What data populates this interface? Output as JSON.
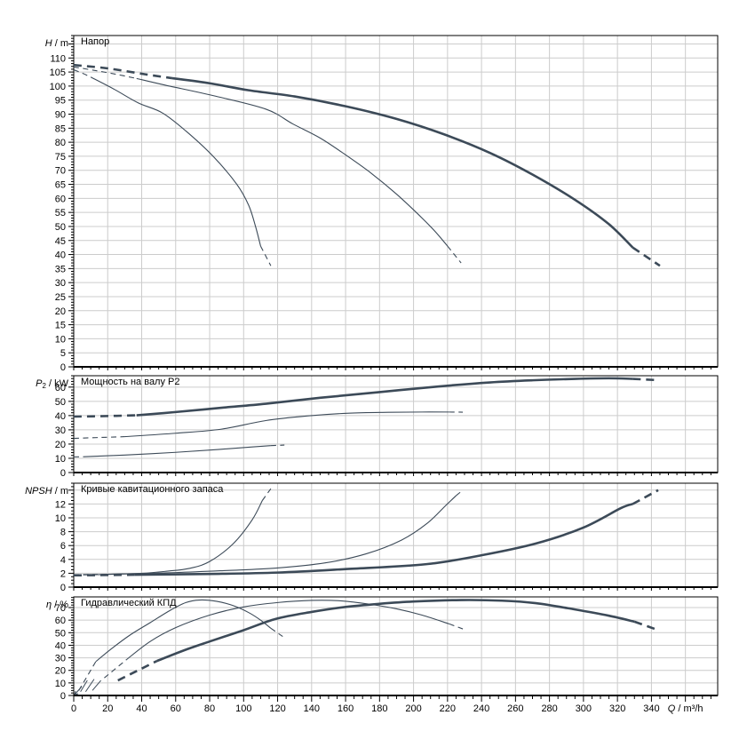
{
  "page": {
    "background": "#ffffff",
    "curve_color": "#3c4a58",
    "grid_color": "#cccccc",
    "frame_color": "#000000"
  },
  "chart_data": {
    "type": "line",
    "x_axis": {
      "quantity": "Q",
      "unit": "m³/h",
      "label": "Q / m³/h",
      "min": 0,
      "max": 379,
      "major_step": 20,
      "minor_step": 5,
      "last_label": 340,
      "tick_labels": [
        0,
        20,
        40,
        60,
        80,
        100,
        120,
        140,
        160,
        180,
        200,
        220,
        240,
        260,
        280,
        300,
        320,
        340
      ]
    },
    "panels": [
      {
        "id": "head",
        "title": "Напор",
        "ylabel": {
          "quantity": "H",
          "sub": "",
          "unit": "m",
          "text": "H / m"
        },
        "ymax": 118,
        "major_step": 5,
        "minor_step": 1,
        "label_max": 110,
        "series": [
          {
            "name": "speed-1",
            "width": "thin",
            "head": [
              [
                0,
                105.8
              ],
              [
                5,
                104.6
              ],
              [
                10,
                103.2
              ]
            ],
            "body": [
              [
                10,
                103.2
              ],
              [
                24,
                98.8
              ],
              [
                38,
                94
              ],
              [
                52,
                90.5
              ],
              [
                66,
                84
              ],
              [
                82,
                75
              ],
              [
                96,
                65
              ],
              [
                103,
                57.5
              ],
              [
                107,
                50
              ],
              [
                110,
                43
              ]
            ],
            "tail": [
              [
                110,
                43
              ],
              [
                116,
                36
              ]
            ]
          },
          {
            "name": "speed-2",
            "width": "thin",
            "head": [
              [
                0,
                106.8
              ],
              [
                12,
                105.6
              ],
              [
                25,
                104.2
              ],
              [
                37,
                102.7
              ]
            ],
            "body": [
              [
                37,
                102.7
              ],
              [
                54,
                100.3
              ],
              [
                82,
                96.6
              ],
              [
                113,
                91.8
              ],
              [
                129,
                86.5
              ],
              [
                145,
                81.5
              ],
              [
                160,
                75.5
              ],
              [
                175,
                69
              ],
              [
                190,
                61.5
              ],
              [
                205,
                53
              ],
              [
                213,
                48
              ],
              [
                220,
                43
              ]
            ],
            "tail": [
              [
                220,
                43
              ],
              [
                228,
                37
              ]
            ]
          },
          {
            "name": "speed-3",
            "width": "thick",
            "head": [
              [
                0,
                107.5
              ],
              [
                20,
                106.3
              ],
              [
                42,
                104.2
              ],
              [
                58,
                102.8
              ]
            ],
            "body": [
              [
                58,
                102.8
              ],
              [
                80,
                101
              ],
              [
                103,
                98.5
              ],
              [
                130,
                96.3
              ],
              [
                160,
                92.8
              ],
              [
                190,
                88.3
              ],
              [
                218,
                82.8
              ],
              [
                245,
                76.2
              ],
              [
                270,
                68.5
              ],
              [
                295,
                59.5
              ],
              [
                315,
                50.8
              ],
              [
                329,
                42.5
              ]
            ],
            "tail": [
              [
                329,
                42.5
              ],
              [
                345,
                36
              ]
            ]
          }
        ]
      },
      {
        "id": "power",
        "title": "Мощность на валу P2",
        "ylabel": {
          "quantity": "P",
          "sub": "2",
          "unit": "kW",
          "text": "P2 / kW"
        },
        "ymax": 68,
        "major_step": 10,
        "minor_step": 2,
        "label_max": 60,
        "series": [
          {
            "name": "speed-1",
            "width": "thin",
            "head": [
              [
                0,
                11
              ],
              [
                6,
                11.1
              ]
            ],
            "body": [
              [
                6,
                11.1
              ],
              [
                30,
                12.3
              ],
              [
                60,
                14.2
              ],
              [
                85,
                16.2
              ],
              [
                105,
                18
              ],
              [
                116,
                18.9
              ]
            ],
            "tail": [
              [
                116,
                18.9
              ],
              [
                124,
                19.3
              ]
            ]
          },
          {
            "name": "speed-2",
            "width": "thin",
            "head": [
              [
                0,
                24
              ],
              [
                15,
                24.6
              ],
              [
                30,
                25.2
              ]
            ],
            "body": [
              [
                30,
                25.2
              ],
              [
                60,
                27.6
              ],
              [
                87,
                30.5
              ],
              [
                113,
                36.5
              ],
              [
                138,
                39.8
              ],
              [
                162,
                41.7
              ],
              [
                185,
                42.3
              ],
              [
                205,
                42.5
              ],
              [
                221,
                42.5
              ]
            ],
            "tail": [
              [
                221,
                42.5
              ],
              [
                229,
                42.4
              ]
            ]
          },
          {
            "name": "speed-3",
            "width": "thick",
            "head": [
              [
                0,
                39.3
              ],
              [
                20,
                39.7
              ],
              [
                37,
                40.2
              ]
            ],
            "body": [
              [
                37,
                40.2
              ],
              [
                60,
                42.5
              ],
              [
                87,
                45.5
              ],
              [
                113,
                48.3
              ],
              [
                145,
                52.5
              ],
              [
                180,
                56.5
              ],
              [
                215,
                60.5
              ],
              [
                245,
                63.3
              ],
              [
                270,
                64.8
              ],
              [
                295,
                65.8
              ],
              [
                315,
                66.2
              ],
              [
                329,
                65.8
              ]
            ],
            "tail": [
              [
                329,
                65.8
              ],
              [
                342,
                65
              ]
            ]
          }
        ]
      },
      {
        "id": "npsh",
        "title": "Кривые кавитационного запаса",
        "ylabel": {
          "quantity": "NPSH",
          "sub": "",
          "unit": "m",
          "text": "NPSH / m"
        },
        "ymax": 15,
        "major_step": 2,
        "minor_step": 0.5,
        "label_max": 12,
        "series": [
          {
            "name": "speed-1",
            "width": "thin",
            "head": [
              [
                0,
                1.75
              ],
              [
                14,
                1.8
              ]
            ],
            "body": [
              [
                14,
                1.8
              ],
              [
                40,
                2.0
              ],
              [
                55,
                2.3
              ],
              [
                68,
                2.7
              ],
              [
                80,
                3.7
              ],
              [
                94,
                6.3
              ],
              [
                105,
                9.7
              ],
              [
                111,
                12.5
              ]
            ],
            "tail": [
              [
                111,
                12.5
              ],
              [
                116,
                14.2
              ]
            ]
          },
          {
            "name": "speed-2",
            "width": "thin",
            "head": [
              [
                0,
                1.8
              ],
              [
                20,
                1.85
              ]
            ],
            "body": [
              [
                20,
                1.85
              ],
              [
                60,
                2.1
              ],
              [
                90,
                2.4
              ],
              [
                119,
                2.75
              ],
              [
                148,
                3.5
              ],
              [
                172,
                4.8
              ],
              [
                193,
                6.8
              ],
              [
                208,
                9.2
              ],
              [
                219,
                11.8
              ],
              [
                225,
                13.2
              ]
            ],
            "tail": [
              [
                225,
                13.2
              ],
              [
                229,
                14
              ]
            ]
          },
          {
            "name": "speed-3",
            "width": "thick",
            "head": [
              [
                0,
                1.7
              ],
              [
                36,
                1.78
              ]
            ],
            "body": [
              [
                36,
                1.78
              ],
              [
                80,
                1.9
              ],
              [
                120,
                2.1
              ],
              [
                160,
                2.6
              ],
              [
                207,
                3.3
              ],
              [
                240,
                4.6
              ],
              [
                272,
                6.3
              ],
              [
                300,
                8.6
              ],
              [
                322,
                11.4
              ],
              [
                329,
                12
              ]
            ],
            "tail": [
              [
                329,
                12
              ],
              [
                344,
                14
              ]
            ]
          }
        ]
      },
      {
        "id": "efficiency",
        "title": "Гидравлический КПД",
        "ylabel": {
          "quantity": "η",
          "sub": "",
          "unit": "%",
          "text": "η / %"
        },
        "ymax": 78.5,
        "major_step": 10,
        "minor_step": 2,
        "label_max": 70,
        "origin_dashes": [
          [
            [
              4,
              3
            ],
            [
              8,
              12
            ]
          ],
          [
            [
              7,
              3
            ],
            [
              12,
              13
            ]
          ],
          [
            [
              11,
              4
            ],
            [
              16,
              12
            ]
          ]
        ],
        "origin_arrow": true,
        "series": [
          {
            "name": "speed-1",
            "width": "thin",
            "head": [
              [
                3,
                4
              ],
              [
                13,
                27
              ]
            ],
            "body": [
              [
                13,
                27
              ],
              [
                22,
                37
              ],
              [
                33,
                48
              ],
              [
                45,
                58
              ],
              [
                57,
                68
              ],
              [
                66,
                74
              ],
              [
                74,
                76
              ],
              [
                84,
                75
              ],
              [
                94,
                71.5
              ],
              [
                103,
                66
              ],
              [
                110,
                60
              ],
              [
                116,
                53.5
              ]
            ],
            "tail": [
              [
                116,
                53.5
              ],
              [
                123,
                47
              ]
            ]
          },
          {
            "name": "speed-2",
            "width": "thin",
            "head": [
              [
                18,
                14
              ],
              [
                31,
                28.5
              ]
            ],
            "body": [
              [
                31,
                28.5
              ],
              [
                45,
                43
              ],
              [
                60,
                54
              ],
              [
                80,
                64
              ],
              [
                100,
                70.5
              ],
              [
                120,
                74
              ],
              [
                140,
                75.7
              ],
              [
                158,
                75.3
              ],
              [
                175,
                72.5
              ],
              [
                190,
                69
              ],
              [
                205,
                64
              ],
              [
                221,
                57
              ]
            ],
            "tail": [
              [
                221,
                57
              ],
              [
                229,
                53
              ]
            ]
          },
          {
            "name": "speed-3",
            "width": "thick",
            "head": [
              [
                26,
                12
              ],
              [
                49,
                27.5
              ]
            ],
            "body": [
              [
                49,
                27.5
              ],
              [
                65,
                36
              ],
              [
                80,
                43
              ],
              [
                100,
                52
              ],
              [
                119,
                61
              ],
              [
                140,
                66.5
              ],
              [
                160,
                70.5
              ],
              [
                180,
                73
              ],
              [
                200,
                74.8
              ],
              [
                228,
                76
              ],
              [
                252,
                75.5
              ],
              [
                272,
                73.5
              ],
              [
                295,
                68.5
              ],
              [
                315,
                63.5
              ],
              [
                330,
                58.8
              ]
            ],
            "tail": [
              [
                330,
                58.8
              ],
              [
                342,
                53
              ]
            ]
          }
        ]
      }
    ]
  }
}
